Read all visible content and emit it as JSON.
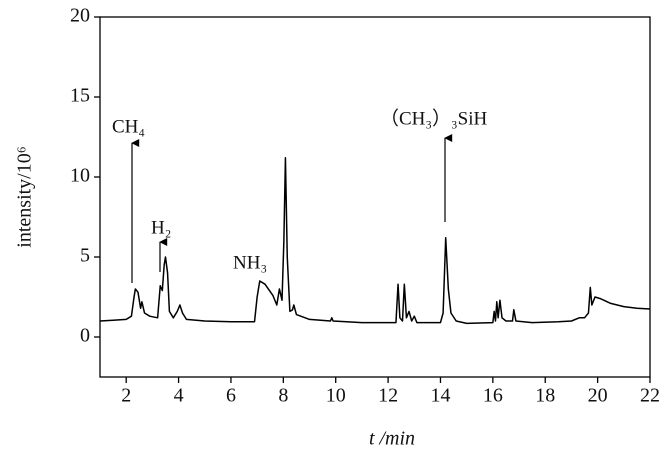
{
  "chart_data": {
    "type": "line",
    "x_label": "t /min",
    "y_label": "intensity/10⁶",
    "xlim": [
      1,
      22
    ],
    "xticks": [
      2,
      4,
      6,
      8,
      10,
      12,
      14,
      16,
      18,
      20,
      22
    ],
    "ylim": [
      -2.5,
      20
    ],
    "yticks": [
      0,
      5,
      10,
      15,
      20
    ],
    "annotations": [
      "CH₄",
      "H₂",
      "NH₃",
      "（CH₃）₃SiH"
    ],
    "series": [
      {
        "color": "#000000",
        "x": [
          1.0,
          1.5,
          2.0,
          2.2,
          2.3,
          2.35,
          2.45,
          2.55,
          2.6,
          2.7,
          2.9,
          3.2,
          3.3,
          3.38,
          3.45,
          3.5,
          3.58,
          3.65,
          3.8,
          3.95,
          4.05,
          4.15,
          4.3,
          5.0,
          6.0,
          6.9,
          7.0,
          7.1,
          7.3,
          7.6,
          7.75,
          7.85,
          7.95,
          8.02,
          8.08,
          8.15,
          8.25,
          8.35,
          8.4,
          8.5,
          9.0,
          9.8,
          9.85,
          9.9,
          11.0,
          12.3,
          12.38,
          12.45,
          12.55,
          12.62,
          12.7,
          12.8,
          12.9,
          13.0,
          13.1,
          14.0,
          14.1,
          14.2,
          14.3,
          14.4,
          14.6,
          15.0,
          16.0,
          16.05,
          16.1,
          16.15,
          16.2,
          16.27,
          16.35,
          16.5,
          16.75,
          16.8,
          16.88,
          17.5,
          18.5,
          19.0,
          19.3,
          19.5,
          19.65,
          19.72,
          19.78,
          19.9,
          20.1,
          20.5,
          21.0,
          21.5,
          22.0
        ],
        "values": [
          1.0,
          1.05,
          1.1,
          1.3,
          2.5,
          3.0,
          2.8,
          1.8,
          2.2,
          1.5,
          1.3,
          1.2,
          3.2,
          2.9,
          4.5,
          5.0,
          4.0,
          1.6,
          1.2,
          1.6,
          2.0,
          1.5,
          1.1,
          1.0,
          0.95,
          0.95,
          2.5,
          3.5,
          3.3,
          2.6,
          2.0,
          3.0,
          2.3,
          6.0,
          11.2,
          5.0,
          1.6,
          1.7,
          2.0,
          1.4,
          1.1,
          1.0,
          1.2,
          1.0,
          0.9,
          0.9,
          3.3,
          1.2,
          1.0,
          3.3,
          1.2,
          1.6,
          1.0,
          1.3,
          0.9,
          0.9,
          1.5,
          6.2,
          3.0,
          1.5,
          1.0,
          0.85,
          0.9,
          1.6,
          1.0,
          2.2,
          1.2,
          2.3,
          1.2,
          1.0,
          1.0,
          1.7,
          1.0,
          0.9,
          0.95,
          1.0,
          1.2,
          1.2,
          1.5,
          3.1,
          2.0,
          2.5,
          2.4,
          2.1,
          1.9,
          1.8,
          1.75
        ]
      }
    ]
  }
}
